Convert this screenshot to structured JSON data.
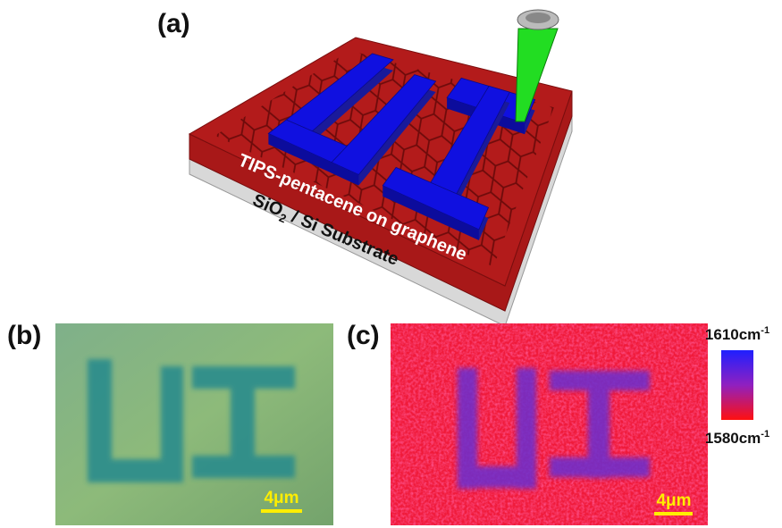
{
  "panels": {
    "a": {
      "label": "(a)",
      "layer_label": "TIPS-pentacene on graphene",
      "substrate_label": [
        "SiO",
        "2",
        " / Si Substrate"
      ]
    },
    "b": {
      "label": "(b)",
      "scale_bar": "4μm"
    },
    "c": {
      "label": "(c)",
      "scale_bar": "4μm",
      "colorbar_max": [
        "1610cm",
        "-1"
      ],
      "colorbar_min": [
        "1580cm",
        "-1"
      ]
    }
  }
}
